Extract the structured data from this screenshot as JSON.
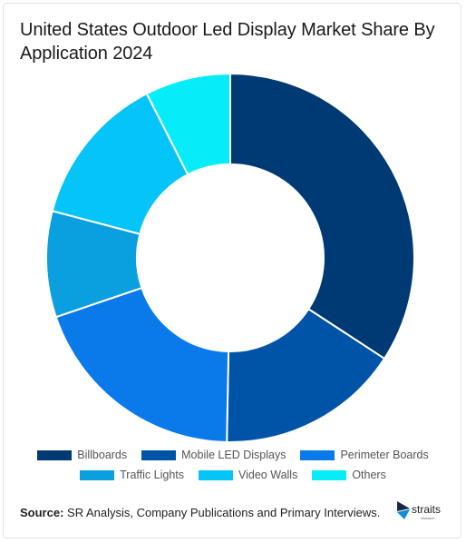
{
  "chart_data": {
    "type": "pie",
    "title": "United States Outdoor Led Display Market Share By Application 2024",
    "donut": true,
    "categories": [
      "Billboards",
      "Mobile LED Displays",
      "Perimeter Boards",
      "Traffic Lights",
      "Video Walls",
      "Others"
    ],
    "values": [
      34.2,
      16.1,
      19.5,
      9.3,
      13.4,
      7.5
    ],
    "colors": [
      "#003a75",
      "#0054a8",
      "#0a7aea",
      "#0aa0e0",
      "#05c4f8",
      "#06ecf8"
    ],
    "legend": "bottom"
  },
  "legend_rows": [
    [
      0,
      1,
      2
    ],
    [
      3,
      4,
      5
    ]
  ],
  "footer": {
    "source_label": "Source:",
    "source_text": " SR Analysis, Company Publications and Primary Interviews."
  },
  "logo": {
    "name": "straits",
    "sub": "research",
    "icon": "straits-logo-icon"
  }
}
